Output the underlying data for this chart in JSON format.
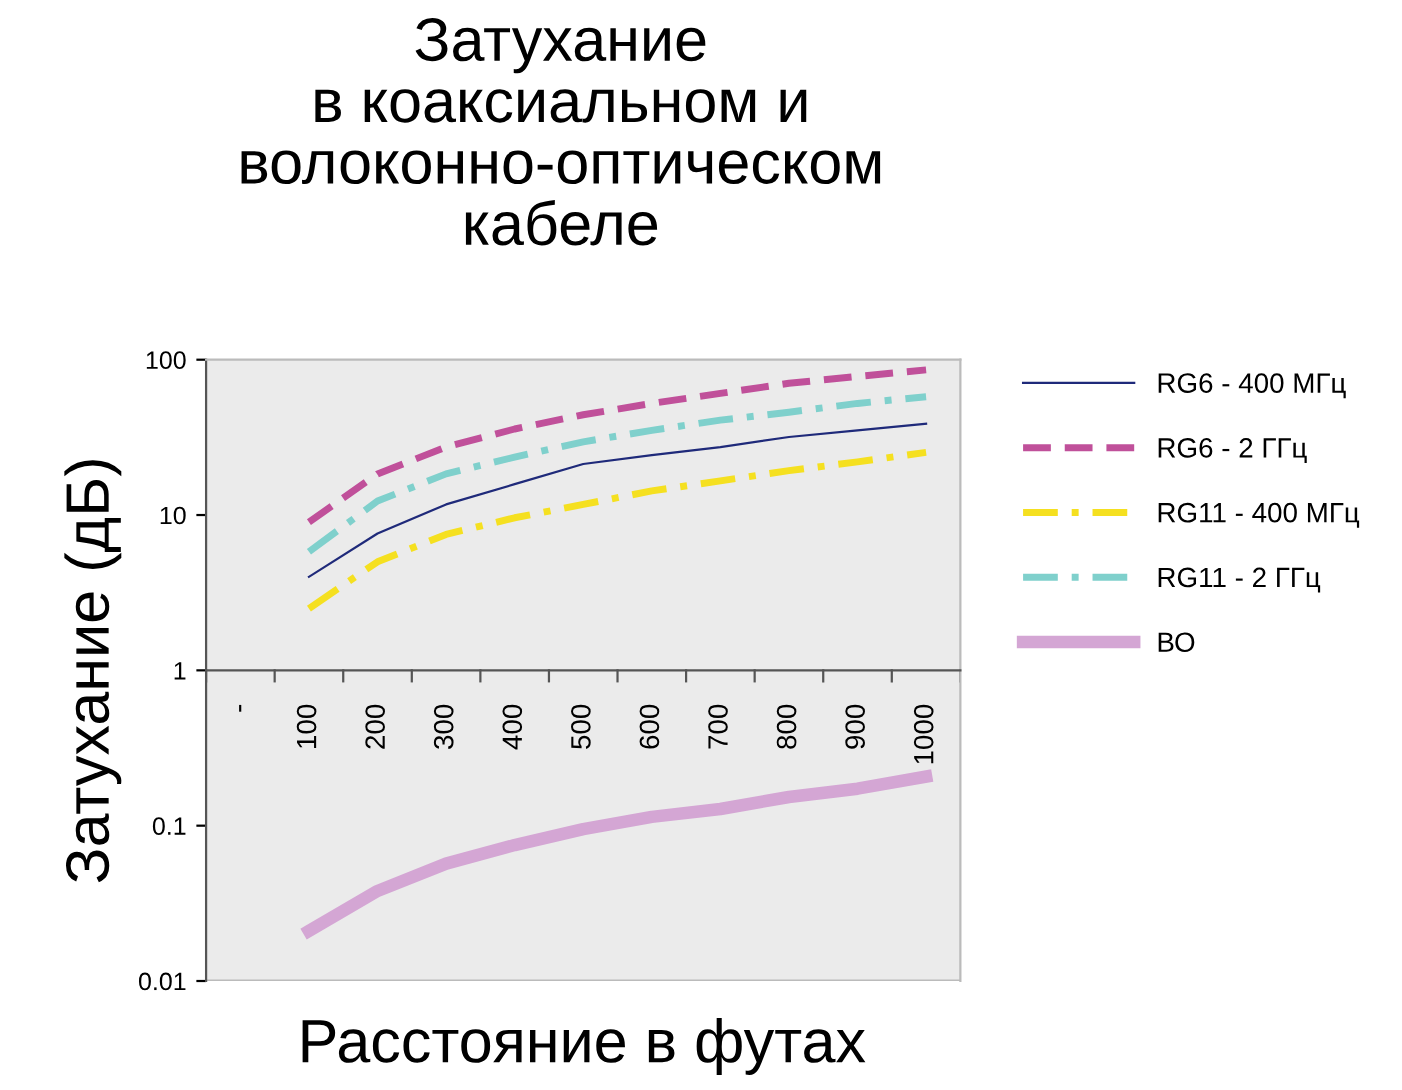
{
  "chart_data": {
    "type": "line",
    "title": "Затухание\nв коаксиальном и\nволоконно-оптическом\nкабеле",
    "xlabel": "Расстояние в футах",
    "ylabel": "Затухание (дБ)",
    "categories": [
      "-",
      "100",
      "200",
      "300",
      "400",
      "500",
      "600",
      "700",
      "800",
      "900",
      "1000"
    ],
    "series": [
      {
        "name": "RG6 - 400 МГц",
        "color": "#1f2a7a",
        "line_style": "solid",
        "values": [
          null,
          4.0,
          7.6,
          11.7,
          15.8,
          21.3,
          24.3,
          27.4,
          31.8,
          35.1,
          38.7
        ]
      },
      {
        "name": "RG6 - 2 ГГц",
        "color": "#c0509a",
        "line_style": "dashed",
        "values": [
          null,
          9.0,
          18.4,
          27.4,
          35.8,
          44.2,
          52.3,
          60.7,
          70.5,
          78,
          86
        ]
      },
      {
        "name": "RG11 - 400 МГц",
        "color": "#f5e020",
        "line_style": "dashdot",
        "values": [
          null,
          2.5,
          5.0,
          7.5,
          9.6,
          11.7,
          14.3,
          16.6,
          19.3,
          22,
          25.3
        ]
      },
      {
        "name": "RG11 - 2 ГГц",
        "color": "#7fd0cc",
        "line_style": "dashdot",
        "values": [
          null,
          5.8,
          12.3,
          18.4,
          23.6,
          29.6,
          35.1,
          40.8,
          45.9,
          52.3,
          57.8
        ]
      },
      {
        "name": "ВО",
        "color": "#d4a6d4",
        "line_style": "solid",
        "values": [
          null,
          0.021,
          0.038,
          0.057,
          0.075,
          0.095,
          0.114,
          0.128,
          0.153,
          0.173,
          0.207
        ]
      }
    ],
    "log": "y",
    "ylim": [
      0.01,
      100
    ],
    "yticks": [
      0.01,
      0.1,
      1,
      10,
      100
    ],
    "grid": false,
    "legend": "right",
    "marker": "none"
  }
}
